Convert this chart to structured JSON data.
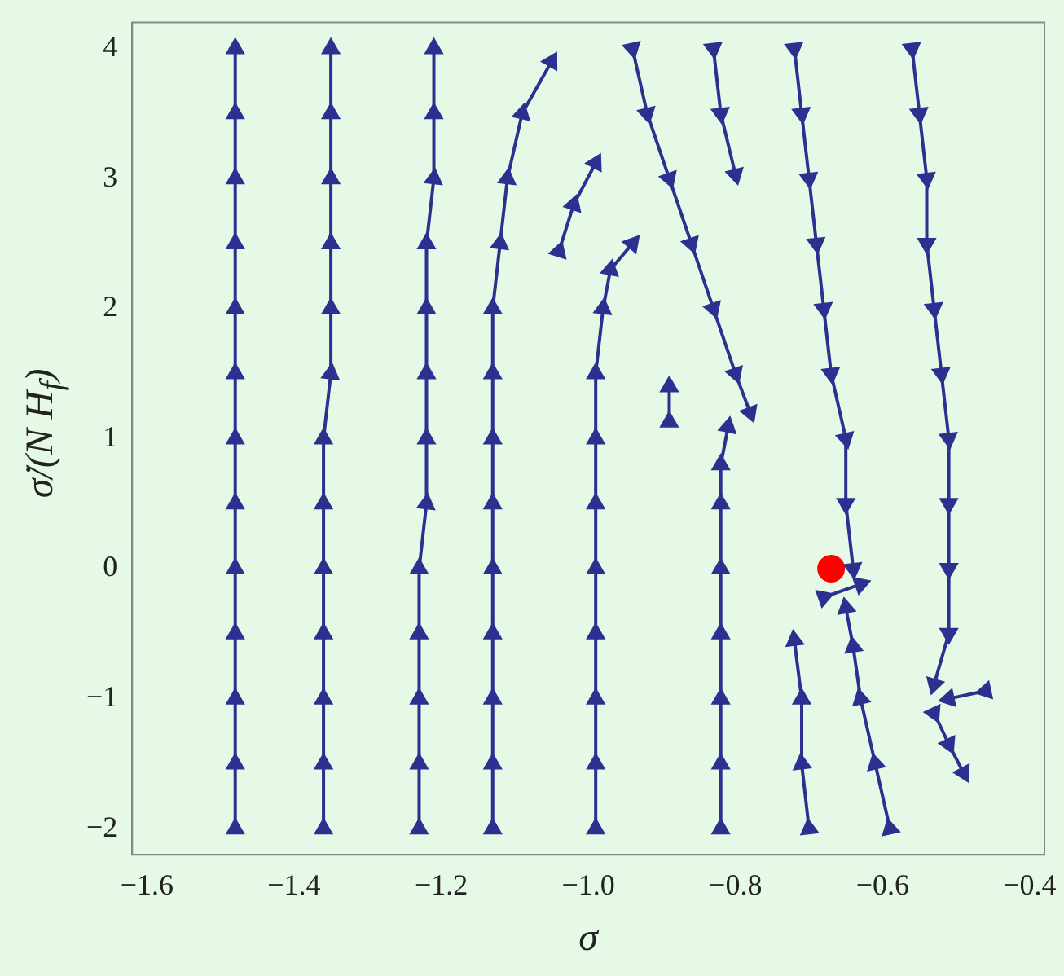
{
  "chart_data": {
    "type": "line",
    "xlabel": "σ",
    "ylabel": "σ̇/(N H$_{f}$)",
    "marker": "triangle",
    "xlim": [
      -1.62,
      -0.38
    ],
    "ylim": [
      -2.2,
      4.2
    ],
    "xticks": [
      {
        "value": -1.6,
        "label": "−1.6"
      },
      {
        "value": -1.4,
        "label": "−1.4"
      },
      {
        "value": -1.2,
        "label": "−1.2"
      },
      {
        "value": -1.0,
        "label": "−1.0"
      },
      {
        "value": -0.8,
        "label": "−0.8"
      },
      {
        "value": -0.6,
        "label": "−0.6"
      },
      {
        "value": -0.4,
        "label": "−0.4"
      }
    ],
    "yticks": [
      {
        "value": -2,
        "label": "−2"
      },
      {
        "value": -1,
        "label": "−1"
      },
      0,
      1,
      2,
      3,
      4
    ],
    "series": [
      {
        "color": "#2b3190",
        "x": [
          -1.48,
          -1.48,
          -1.48,
          -1.48,
          -1.48,
          -1.48,
          -1.48,
          -1.48,
          -1.48,
          -1.48,
          -1.48,
          -1.48,
          -1.48
        ],
        "values": [
          -2,
          -1.5,
          -1,
          -0.5,
          0,
          0.5,
          1,
          1.5,
          2,
          2.5,
          3,
          3.5,
          4
        ]
      },
      {
        "color": "#2b3190",
        "x": [
          -1.36,
          -1.36,
          -1.36,
          -1.36,
          -1.36,
          -1.36,
          -1.36,
          -1.35,
          -1.35,
          -1.35,
          -1.35,
          -1.35,
          -1.35
        ],
        "values": [
          -2,
          -1.5,
          -1,
          -0.5,
          0,
          0.5,
          1,
          1.5,
          2,
          2.5,
          3,
          3.5,
          4
        ]
      },
      {
        "color": "#2b3190",
        "x": [
          -1.23,
          -1.23,
          -1.23,
          -1.23,
          -1.23,
          -1.22,
          -1.22,
          -1.22,
          -1.22,
          -1.22,
          -1.21,
          -1.21,
          -1.21
        ],
        "values": [
          -2,
          -1.5,
          -1,
          -0.5,
          0,
          0.5,
          1,
          1.5,
          2,
          2.5,
          3,
          3.5,
          4
        ]
      },
      {
        "color": "#2b3190",
        "x": [
          -1.13,
          -1.13,
          -1.13,
          -1.13,
          -1.13,
          -1.13,
          -1.13,
          -1.13,
          -1.13,
          -1.12,
          -1.11,
          -1.09,
          -1.05
        ],
        "values": [
          -2,
          -1.5,
          -1,
          -0.5,
          0,
          0.5,
          1,
          1.5,
          2,
          2.5,
          3,
          3.5,
          3.9
        ]
      },
      {
        "color": "#2b3190",
        "x": [
          -0.99,
          -0.99,
          -0.99,
          -0.99,
          -0.99,
          -0.99,
          -0.99,
          -0.99,
          -0.98,
          -0.97,
          -0.94
        ],
        "values": [
          -2,
          -1.5,
          -1,
          -0.5,
          0,
          0.5,
          1,
          1.5,
          2,
          2.3,
          2.5
        ]
      },
      {
        "color": "#2b3190",
        "x": [
          -1.04,
          -1.02,
          -0.99
        ],
        "values": [
          2.44,
          2.8,
          3.12
        ]
      },
      {
        "color": "#2b3190",
        "x": [
          -0.82,
          -0.82,
          -0.82,
          -0.82,
          -0.82,
          -0.82,
          -0.82,
          -0.81
        ],
        "values": [
          -2,
          -1.5,
          -1,
          -0.5,
          0,
          0.5,
          0.8,
          1.09
        ]
      },
      {
        "color": "#2b3190",
        "x": [
          -0.89,
          -0.89
        ],
        "values": [
          1.13,
          1.4
        ]
      },
      {
        "color": "#2b3190",
        "x": [
          -0.7,
          -0.71,
          -0.71,
          -0.72
        ],
        "values": [
          -2,
          -1.5,
          -1,
          -0.55
        ]
      },
      {
        "color": "#2b3190",
        "x": [
          -0.59,
          -0.61,
          -0.63,
          -0.64,
          -0.65
        ],
        "values": [
          -2,
          -1.5,
          -1,
          -0.6,
          -0.3
        ]
      },
      {
        "color": "#2b3190",
        "x": [
          -0.68,
          -0.63
        ],
        "values": [
          -0.22,
          -0.12
        ]
      },
      {
        "color": "#2b3190",
        "x": [
          -0.94,
          -0.92,
          -0.89,
          -0.86,
          -0.83,
          -0.8,
          -0.78
        ],
        "values": [
          4,
          3.5,
          3,
          2.5,
          2,
          1.5,
          1.2
        ]
      },
      {
        "color": "#2b3190",
        "x": [
          -0.83,
          -0.82,
          -0.8
        ],
        "values": [
          4,
          3.5,
          3.03
        ]
      },
      {
        "color": "#2b3190",
        "x": [
          -0.72,
          -0.71,
          -0.7,
          -0.69,
          -0.68,
          -0.67,
          -0.65,
          -0.65,
          -0.64
        ],
        "values": [
          4,
          3.5,
          3,
          2.5,
          2,
          1.5,
          1,
          0.5,
          0
        ]
      },
      {
        "color": "#2b3190",
        "x": [
          -0.56,
          -0.55,
          -0.54,
          -0.54,
          -0.53,
          -0.52,
          -0.51,
          -0.51,
          -0.51,
          -0.51,
          -0.53
        ],
        "values": [
          4,
          3.5,
          3,
          2.5,
          2,
          1.5,
          1,
          0.5,
          0,
          -0.5,
          -0.89
        ]
      },
      {
        "color": "#2b3190",
        "x": [
          -0.53,
          -0.51,
          -0.49
        ],
        "values": [
          -1.11,
          -1.35,
          -1.57
        ]
      },
      {
        "color": "#2b3190",
        "x": [
          -0.46,
          -0.51
        ],
        "values": [
          -0.94,
          -1.0
        ]
      },
      {
        "type": "scatter",
        "marker": "circle",
        "color": "#ff0000",
        "x": [
          -0.67
        ],
        "values": [
          0
        ]
      }
    ]
  }
}
